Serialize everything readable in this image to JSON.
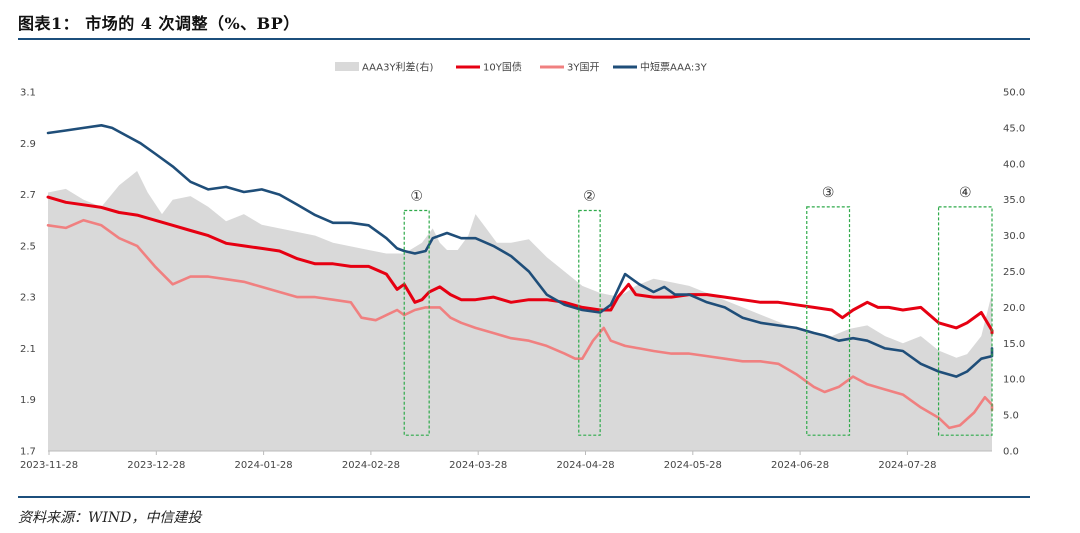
{
  "header": {
    "title": "图表1： 市场的 4 次调整（%、BP）"
  },
  "footer": {
    "source": "资料来源：WIND，中信建投"
  },
  "colors": {
    "spread": "#d9d9d9",
    "cgb10y": "#e60012",
    "cdb3y": "#f08080",
    "mtn": "#1f4e79",
    "box": "#2eaa4a",
    "rule": "#1c4f7c"
  },
  "chart_data": {
    "type": "line",
    "title": "市场的 4 次调整",
    "x_tick_labels": [
      "2023-11-28",
      "2023-12-28",
      "2024-01-28",
      "2024-02-28",
      "2024-03-28",
      "2024-04-28",
      "2024-05-28",
      "2024-06-28",
      "2024-07-28"
    ],
    "x_range": [
      0,
      265
    ],
    "y_left": {
      "range": [
        1.7,
        3.1
      ],
      "ticks": [
        "3.1",
        "2.9",
        "2.7",
        "2.5",
        "2.3",
        "2.1",
        "1.9",
        "1.7"
      ]
    },
    "y_right": {
      "range": [
        0,
        50
      ],
      "ticks": [
        "50.0",
        "45.0",
        "40.0",
        "35.0",
        "30.0",
        "25.0",
        "20.0",
        "15.0",
        "10.0",
        "5.0",
        "0.0"
      ]
    },
    "legend": [
      "AAA3Y利差(右)",
      "10Y国债",
      "3Y国开",
      "中短票AAA:3Y"
    ],
    "series": [
      {
        "name": "AAA3Y利差(右)",
        "type": "area",
        "axis": "right",
        "points": [
          [
            0,
            36
          ],
          [
            5,
            36.5
          ],
          [
            10,
            35
          ],
          [
            15,
            34
          ],
          [
            20,
            37
          ],
          [
            25,
            39
          ],
          [
            28,
            36
          ],
          [
            32,
            33
          ],
          [
            35,
            35
          ],
          [
            40,
            35.5
          ],
          [
            45,
            34
          ],
          [
            50,
            32
          ],
          [
            55,
            33
          ],
          [
            60,
            31.5
          ],
          [
            65,
            31
          ],
          [
            70,
            30.5
          ],
          [
            75,
            30
          ],
          [
            80,
            29
          ],
          [
            85,
            28.5
          ],
          [
            90,
            28
          ],
          [
            95,
            27.5
          ],
          [
            100,
            27.5
          ],
          [
            105,
            29
          ],
          [
            108,
            31
          ],
          [
            110,
            29
          ],
          [
            112,
            28
          ],
          [
            115,
            28
          ],
          [
            118,
            30
          ],
          [
            120,
            33
          ],
          [
            123,
            31
          ],
          [
            126,
            29
          ],
          [
            130,
            29
          ],
          [
            135,
            29.5
          ],
          [
            140,
            27
          ],
          [
            145,
            25
          ],
          [
            150,
            23
          ],
          [
            155,
            22
          ],
          [
            160,
            21.5
          ],
          [
            162,
            22
          ],
          [
            165,
            23
          ],
          [
            170,
            24
          ],
          [
            175,
            23.5
          ],
          [
            180,
            23
          ],
          [
            185,
            22
          ],
          [
            190,
            21
          ],
          [
            195,
            20
          ],
          [
            200,
            19
          ],
          [
            205,
            18
          ],
          [
            210,
            17
          ],
          [
            215,
            16.5
          ],
          [
            220,
            16
          ],
          [
            225,
            17
          ],
          [
            230,
            17.5
          ],
          [
            235,
            16
          ],
          [
            240,
            15
          ],
          [
            245,
            16
          ],
          [
            250,
            14
          ],
          [
            255,
            13
          ],
          [
            258,
            13.5
          ],
          [
            262,
            16
          ],
          [
            265,
            22
          ]
        ]
      },
      {
        "name": "10Y国债",
        "type": "line",
        "axis": "left",
        "points": [
          [
            0,
            2.69
          ],
          [
            5,
            2.67
          ],
          [
            10,
            2.66
          ],
          [
            15,
            2.65
          ],
          [
            20,
            2.63
          ],
          [
            25,
            2.62
          ],
          [
            30,
            2.6
          ],
          [
            35,
            2.58
          ],
          [
            40,
            2.56
          ],
          [
            45,
            2.54
          ],
          [
            50,
            2.51
          ],
          [
            55,
            2.5
          ],
          [
            60,
            2.49
          ],
          [
            65,
            2.48
          ],
          [
            70,
            2.45
          ],
          [
            75,
            2.43
          ],
          [
            80,
            2.43
          ],
          [
            85,
            2.42
          ],
          [
            90,
            2.42
          ],
          [
            95,
            2.39
          ],
          [
            98,
            2.33
          ],
          [
            100,
            2.35
          ],
          [
            103,
            2.28
          ],
          [
            105,
            2.29
          ],
          [
            107,
            2.32
          ],
          [
            110,
            2.34
          ],
          [
            113,
            2.31
          ],
          [
            116,
            2.29
          ],
          [
            120,
            2.29
          ],
          [
            125,
            2.3
          ],
          [
            130,
            2.28
          ],
          [
            135,
            2.29
          ],
          [
            140,
            2.29
          ],
          [
            145,
            2.28
          ],
          [
            150,
            2.26
          ],
          [
            155,
            2.25
          ],
          [
            158,
            2.25
          ],
          [
            160,
            2.3
          ],
          [
            163,
            2.35
          ],
          [
            165,
            2.31
          ],
          [
            170,
            2.3
          ],
          [
            175,
            2.3
          ],
          [
            180,
            2.31
          ],
          [
            185,
            2.31
          ],
          [
            190,
            2.3
          ],
          [
            195,
            2.29
          ],
          [
            200,
            2.28
          ],
          [
            205,
            2.28
          ],
          [
            210,
            2.27
          ],
          [
            215,
            2.26
          ],
          [
            220,
            2.25
          ],
          [
            223,
            2.22
          ],
          [
            226,
            2.25
          ],
          [
            230,
            2.28
          ],
          [
            233,
            2.26
          ],
          [
            236,
            2.26
          ],
          [
            240,
            2.25
          ],
          [
            245,
            2.26
          ],
          [
            250,
            2.2
          ],
          [
            255,
            2.18
          ],
          [
            258,
            2.2
          ],
          [
            262,
            2.24
          ],
          [
            265,
            2.17
          ],
          [
            270,
            2.16
          ]
        ]
      },
      {
        "name": "3Y国开",
        "type": "line",
        "axis": "left",
        "points": [
          [
            0,
            2.58
          ],
          [
            5,
            2.57
          ],
          [
            10,
            2.6
          ],
          [
            15,
            2.58
          ],
          [
            20,
            2.53
          ],
          [
            25,
            2.5
          ],
          [
            30,
            2.42
          ],
          [
            35,
            2.35
          ],
          [
            40,
            2.38
          ],
          [
            45,
            2.38
          ],
          [
            50,
            2.37
          ],
          [
            55,
            2.36
          ],
          [
            60,
            2.34
          ],
          [
            65,
            2.32
          ],
          [
            70,
            2.3
          ],
          [
            75,
            2.3
          ],
          [
            80,
            2.29
          ],
          [
            85,
            2.28
          ],
          [
            88,
            2.22
          ],
          [
            92,
            2.21
          ],
          [
            95,
            2.23
          ],
          [
            98,
            2.25
          ],
          [
            100,
            2.23
          ],
          [
            103,
            2.25
          ],
          [
            106,
            2.26
          ],
          [
            110,
            2.26
          ],
          [
            113,
            2.22
          ],
          [
            116,
            2.2
          ],
          [
            120,
            2.18
          ],
          [
            125,
            2.16
          ],
          [
            130,
            2.14
          ],
          [
            135,
            2.13
          ],
          [
            140,
            2.11
          ],
          [
            145,
            2.08
          ],
          [
            148,
            2.06
          ],
          [
            150,
            2.06
          ],
          [
            153,
            2.13
          ],
          [
            156,
            2.18
          ],
          [
            158,
            2.13
          ],
          [
            162,
            2.11
          ],
          [
            166,
            2.1
          ],
          [
            170,
            2.09
          ],
          [
            175,
            2.08
          ],
          [
            180,
            2.08
          ],
          [
            185,
            2.07
          ],
          [
            190,
            2.06
          ],
          [
            195,
            2.05
          ],
          [
            200,
            2.05
          ],
          [
            205,
            2.04
          ],
          [
            210,
            2.0
          ],
          [
            215,
            1.95
          ],
          [
            218,
            1.93
          ],
          [
            222,
            1.95
          ],
          [
            226,
            1.99
          ],
          [
            230,
            1.96
          ],
          [
            235,
            1.94
          ],
          [
            240,
            1.92
          ],
          [
            245,
            1.87
          ],
          [
            250,
            1.83
          ],
          [
            253,
            1.79
          ],
          [
            256,
            1.8
          ],
          [
            260,
            1.85
          ],
          [
            263,
            1.91
          ],
          [
            266,
            1.88
          ],
          [
            270,
            1.86
          ]
        ]
      },
      {
        "name": "中短票AAA:3Y",
        "type": "line",
        "axis": "left",
        "points": [
          [
            0,
            2.94
          ],
          [
            5,
            2.95
          ],
          [
            10,
            2.96
          ],
          [
            15,
            2.97
          ],
          [
            18,
            2.96
          ],
          [
            22,
            2.93
          ],
          [
            26,
            2.9
          ],
          [
            30,
            2.86
          ],
          [
            35,
            2.81
          ],
          [
            40,
            2.75
          ],
          [
            45,
            2.72
          ],
          [
            50,
            2.73
          ],
          [
            55,
            2.71
          ],
          [
            60,
            2.72
          ],
          [
            65,
            2.7
          ],
          [
            70,
            2.66
          ],
          [
            75,
            2.62
          ],
          [
            80,
            2.59
          ],
          [
            85,
            2.59
          ],
          [
            90,
            2.58
          ],
          [
            95,
            2.53
          ],
          [
            98,
            2.49
          ],
          [
            100,
            2.48
          ],
          [
            103,
            2.47
          ],
          [
            106,
            2.48
          ],
          [
            108,
            2.53
          ],
          [
            112,
            2.55
          ],
          [
            116,
            2.53
          ],
          [
            120,
            2.53
          ],
          [
            125,
            2.5
          ],
          [
            130,
            2.46
          ],
          [
            135,
            2.4
          ],
          [
            140,
            2.31
          ],
          [
            145,
            2.27
          ],
          [
            150,
            2.25
          ],
          [
            155,
            2.24
          ],
          [
            158,
            2.27
          ],
          [
            160,
            2.33
          ],
          [
            162,
            2.39
          ],
          [
            166,
            2.35
          ],
          [
            170,
            2.32
          ],
          [
            173,
            2.34
          ],
          [
            176,
            2.31
          ],
          [
            180,
            2.31
          ],
          [
            185,
            2.28
          ],
          [
            190,
            2.26
          ],
          [
            195,
            2.22
          ],
          [
            200,
            2.2
          ],
          [
            205,
            2.19
          ],
          [
            210,
            2.18
          ],
          [
            215,
            2.16
          ],
          [
            218,
            2.15
          ],
          [
            222,
            2.13
          ],
          [
            226,
            2.14
          ],
          [
            230,
            2.13
          ],
          [
            235,
            2.1
          ],
          [
            240,
            2.09
          ],
          [
            245,
            2.04
          ],
          [
            250,
            2.01
          ],
          [
            255,
            1.99
          ],
          [
            258,
            2.01
          ],
          [
            262,
            2.06
          ],
          [
            266,
            2.07
          ],
          [
            270,
            2.1
          ]
        ]
      }
    ],
    "annotations": [
      {
        "label": "①",
        "x_start": 100,
        "x_end": 107,
        "y_top": 33.5,
        "y_bottom": 2.2
      },
      {
        "label": "②",
        "x_start": 149,
        "x_end": 155,
        "y_top": 33.5,
        "y_bottom": 2.2
      },
      {
        "label": "③",
        "x_start": 213,
        "x_end": 225,
        "y_top": 34,
        "y_bottom": 2.2
      },
      {
        "label": "④",
        "x_start": 250,
        "x_end": 270,
        "y_top": 34,
        "y_bottom": 2.2
      }
    ]
  }
}
